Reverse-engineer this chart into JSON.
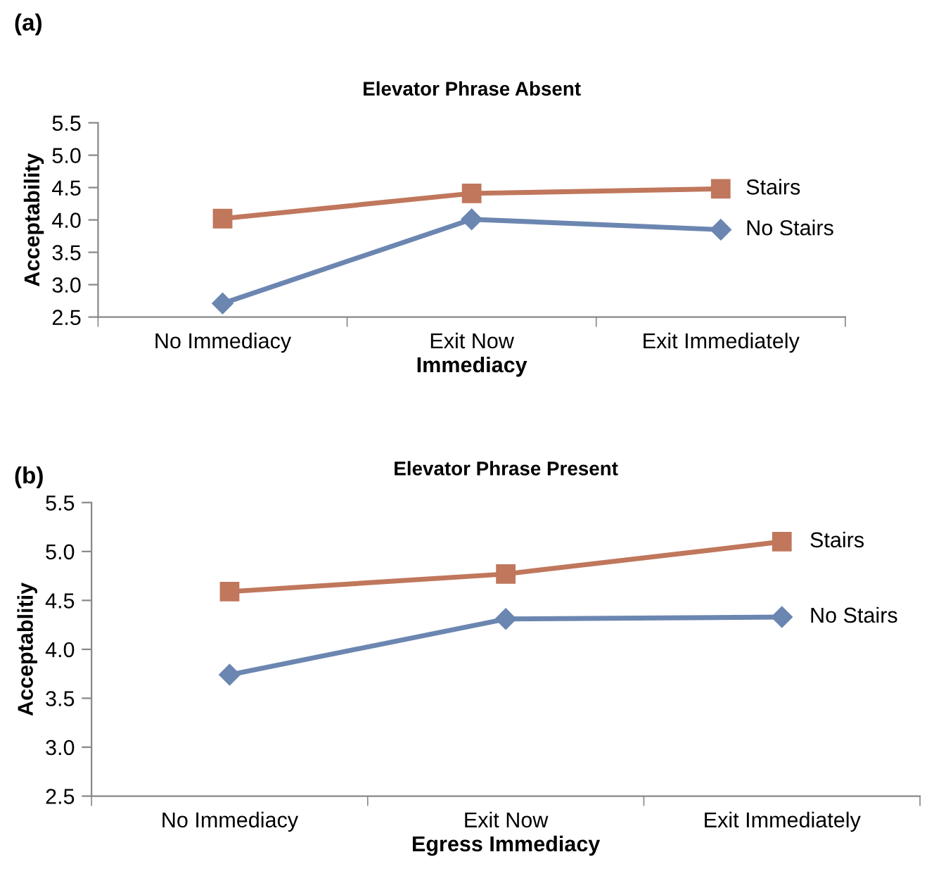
{
  "chart_data": [
    {
      "type": "line",
      "title": "Elevator Phrase Absent",
      "xlabel": "Immediacy",
      "ylabel": "Acceptability",
      "annotations": [
        "(a)"
      ],
      "categories": [
        "No Immediacy",
        "Exit Now",
        "Exit Immediately"
      ],
      "series": [
        {
          "name": "Stairs",
          "color": "#c0775c",
          "marker": "square",
          "values": [
            4.02,
            4.41,
            4.48
          ]
        },
        {
          "name": "No Stairs",
          "color": "#6b86b0",
          "marker": "diamond",
          "values": [
            2.71,
            4.01,
            3.85
          ]
        }
      ],
      "ylim": [
        2.5,
        5.5
      ],
      "yticks": [
        {
          "value": 2.5,
          "label": "2.5"
        },
        {
          "value": 3,
          "label": "3.0"
        },
        {
          "value": 3.5,
          "label": "3.5"
        },
        {
          "value": 4,
          "label": "4.0"
        },
        {
          "value": 4.5,
          "label": "4.5"
        },
        {
          "value": 5,
          "label": "5.0"
        },
        {
          "value": 5.5,
          "label": "5.5"
        }
      ],
      "grid": false,
      "legend": false,
      "line_style": "solid"
    },
    {
      "type": "line",
      "title": "Elevator Phrase Present",
      "xlabel": "Egress Immediacy",
      "ylabel": "Acceptablitiy",
      "annotations": [
        "(b)"
      ],
      "categories": [
        "No Immediacy",
        "Exit Now",
        "Exit Immediately"
      ],
      "series": [
        {
          "name": "Stairs",
          "color": "#c0775c",
          "marker": "square",
          "values": [
            4.59,
            4.77,
            5.1
          ]
        },
        {
          "name": "No Stairs",
          "color": "#6b86b0",
          "marker": "diamond",
          "values": [
            3.74,
            4.31,
            4.33
          ]
        }
      ],
      "ylim": [
        2.5,
        5.5
      ],
      "yticks": [
        {
          "value": 2.5,
          "label": "2.5"
        },
        {
          "value": 3,
          "label": "3.0"
        },
        {
          "value": 3.5,
          "label": "3.5"
        },
        {
          "value": 4,
          "label": "4.0"
        },
        {
          "value": 4.5,
          "label": "4.5"
        },
        {
          "value": 5,
          "label": "5.0"
        },
        {
          "value": 5.5,
          "label": "5.5"
        }
      ],
      "grid": false,
      "legend": false,
      "line_style": "solid"
    }
  ]
}
